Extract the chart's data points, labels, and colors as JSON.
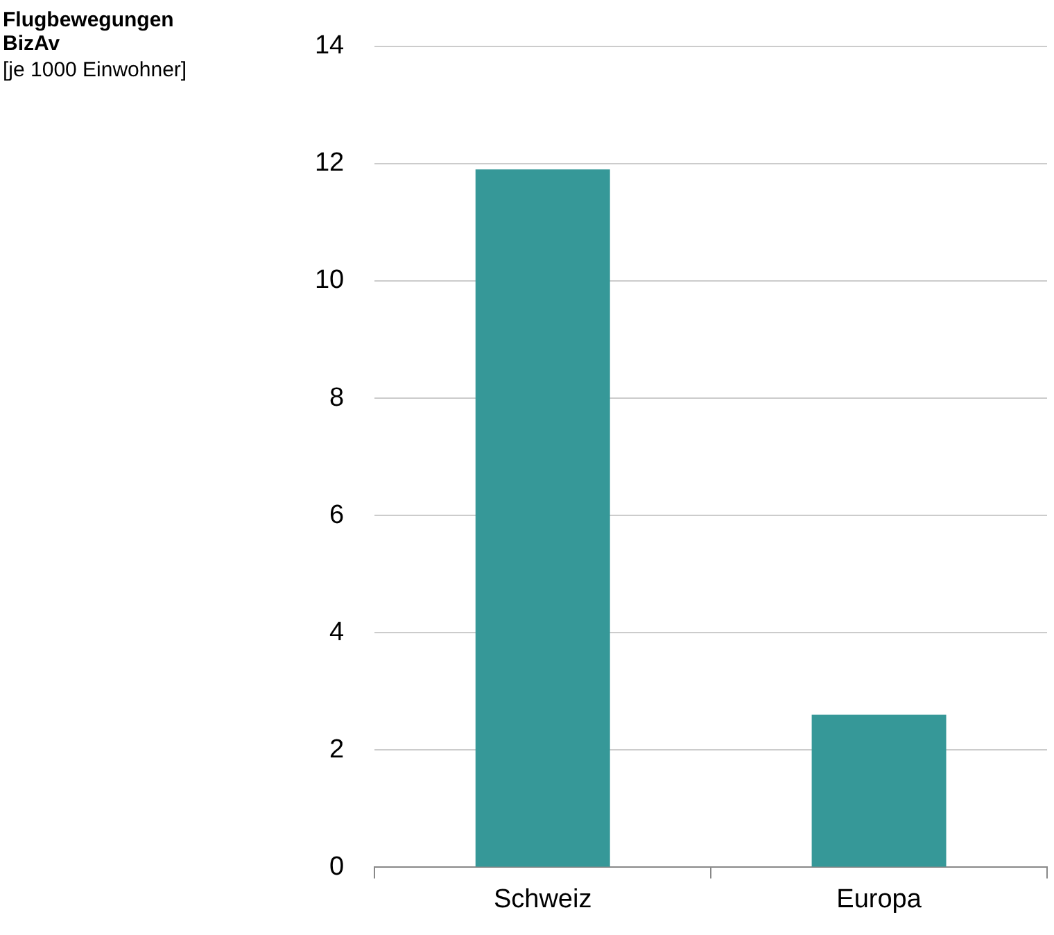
{
  "chart_data": {
    "type": "bar",
    "title": "Flugbewegungen BizAv",
    "subtitle": "[je 1000 Einwohner]",
    "categories": [
      "Schweiz",
      "Europa"
    ],
    "values": [
      11.9,
      2.6
    ],
    "color": "#369898",
    "ylim": [
      0,
      14
    ],
    "yticks": [
      0,
      2,
      4,
      6,
      8,
      10,
      12,
      14
    ],
    "grid": "y",
    "legend": false
  }
}
